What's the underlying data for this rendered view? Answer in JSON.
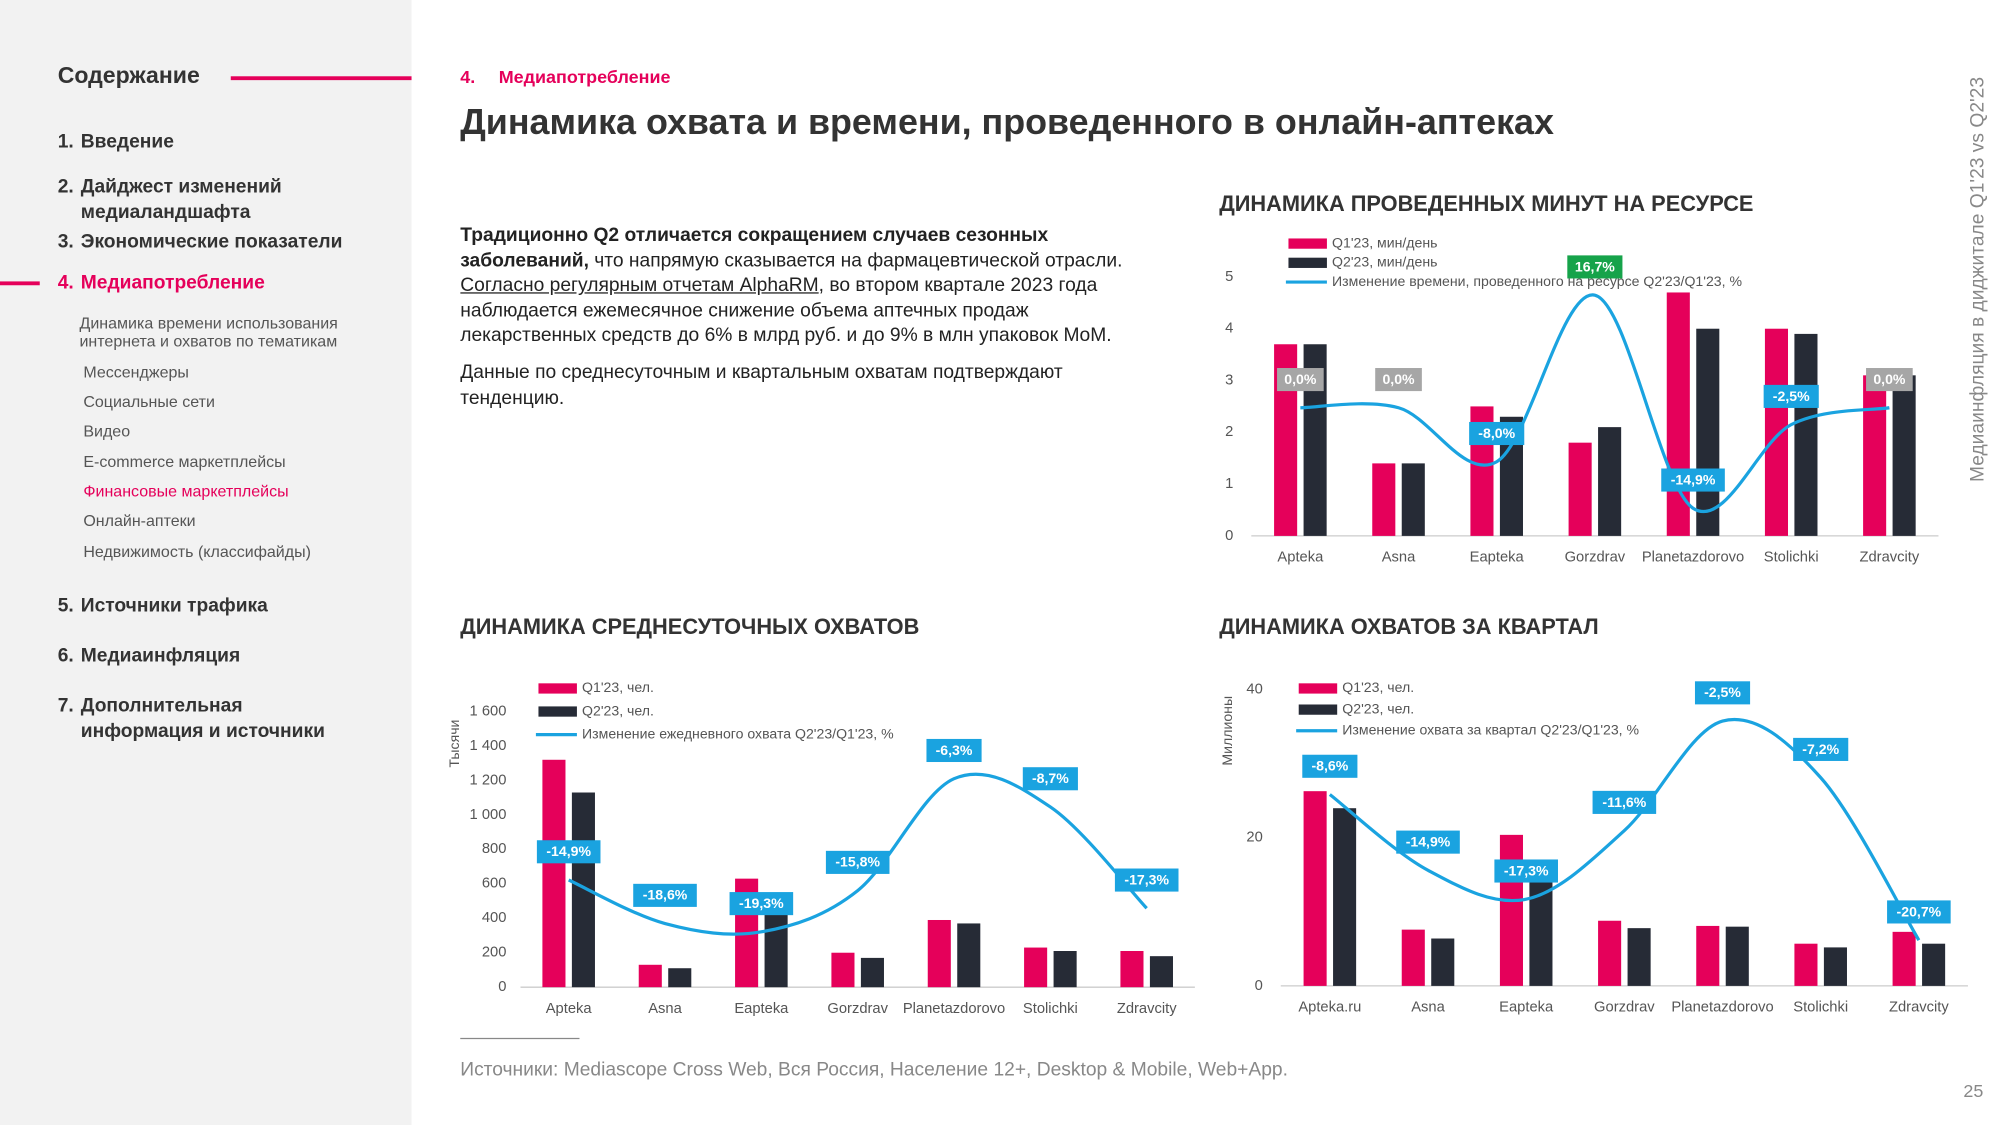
{
  "sidebar": {
    "title": "Содержание",
    "active_item": 3,
    "active_subitem": 5,
    "active_color": "#e5005a",
    "items": [
      {
        "number": "1.",
        "lines": [
          "Введение"
        ]
      },
      {
        "number": "2.",
        "lines": [
          "Дайджест изменений",
          "медиаландшафта"
        ]
      },
      {
        "number": "3.",
        "lines": [
          "Экономические показатели"
        ]
      },
      {
        "number": "4.",
        "lines": [
          "Медиапотребление"
        ]
      },
      {
        "number": "5.",
        "lines": [
          "Источники трафика"
        ]
      },
      {
        "number": "6.",
        "lines": [
          "Медиаинфляция"
        ]
      },
      {
        "number": "7.",
        "lines": [
          "Дополнительная",
          "информация и источники"
        ]
      }
    ],
    "subitems": [
      [
        "Динамика времени использования",
        "интернета и охватов по тематикам"
      ],
      [
        "Мессенджеры"
      ],
      [
        "Социальные сети"
      ],
      [
        "Видео"
      ],
      [
        "E-commerce маркетплейсы"
      ],
      [
        "Финансовые маркетплейсы"
      ],
      [
        "Онлайн-аптеки"
      ],
      [
        "Недвижимость (классифайды)"
      ]
    ]
  },
  "header": {
    "section_number": "4.",
    "section": "Медиапотребление",
    "title": "Динамика охвата и времени, проведенного в онлайн-аптеках"
  },
  "text": {
    "p1_bold": "Традиционно Q2 отличается сокращением случаев сезонных заболеваний,",
    "p1_a": " что напрямую сказывается на фармацевтической отрасли. ",
    "p1_link": "Согласно регулярным отчетам AlphaRM",
    "p1_b": ", во втором квартале 2023 года наблюдается ежемесячное снижение объема аптечных продаж лекарственных средств до 6% в млрд руб. и до 9% в млн упаковок MoM.",
    "p2": "Данные по среднесуточным и квартальным охватам подтверждают тенденцию."
  },
  "side_label": "Медиаинфляция в диджитале Q1'23 vs Q2'23",
  "source": "Источники: Mediascope Cross Web, Вся Россия, Население 12+, Desktop & Mobile, Web+App.",
  "page_number": "25",
  "chart_data": [
    {
      "type": "bar",
      "title": "ДИНАМИКА ПРОВЕДЕННЫХ МИНУТ НА РЕСУРСЕ",
      "categories": [
        "Apteka",
        "Asna",
        "Eapteka",
        "Gorzdrav",
        "Planetazdorovo",
        "Stolichki",
        "Zdravcity"
      ],
      "series": [
        {
          "name": "Q1'23, мин/день",
          "color": "#e5005a",
          "values": [
            3.7,
            1.4,
            2.5,
            1.8,
            4.7,
            4.0,
            3.1
          ]
        },
        {
          "name": "Q2'23, мин/день",
          "color": "#262b36",
          "values": [
            3.7,
            1.4,
            2.3,
            2.1,
            4.0,
            3.9,
            3.1
          ]
        },
        {
          "name": "Изменение времени, проведенного на ресурсе Q2'23/Q1'23, %",
          "color": "#1aa3e0",
          "type": "line",
          "axis": "y2",
          "values": [
            0,
            0,
            -8.0,
            16.7,
            -14.9,
            -2.5,
            0
          ],
          "value_labels": [
            "0,0%",
            "0,0%",
            "-8,0%",
            "16,7%",
            "-14,9%",
            "-2,5%",
            "0,0%"
          ]
        }
      ],
      "ylim": [
        0,
        5
      ],
      "yticks": [
        0,
        1,
        2,
        3,
        4,
        5
      ],
      "y2lim": [
        -19,
        19.4
      ],
      "label_colors": {
        "negative": "#1aa3e0",
        "positive": "#16a34a",
        "zero": "#a6a6a6"
      }
    },
    {
      "type": "bar",
      "title": "ДИНАМИКА СРЕДНЕСУТОЧНЫХ ОХВАТОВ",
      "y_label": "Тысячи",
      "categories": [
        "Apteka",
        "Asna",
        "Eapteka",
        "Gorzdrav",
        "Planetazdorovo",
        "Stolichki",
        "Zdravcity"
      ],
      "series": [
        {
          "name": "Q1'23, чел.",
          "color": "#e5005a",
          "values": [
            1320,
            130,
            630,
            200,
            390,
            230,
            210
          ]
        },
        {
          "name": "Q2'23, чел.",
          "color": "#262b36",
          "values": [
            1130,
            110,
            450,
            170,
            370,
            210,
            180
          ]
        },
        {
          "name": "Изменение ежедневного охвата Q2'23/Q1'23, %",
          "color": "#1aa3e0",
          "type": "line",
          "axis": "y2",
          "values": [
            -14.9,
            -18.6,
            -19.3,
            -15.8,
            -6.3,
            -8.7,
            -17.3
          ],
          "value_labels": [
            "-14,9%",
            "-18,6%",
            "-19,3%",
            "-15,8%",
            "-6,3%",
            "-8,7%",
            "-17,3%"
          ]
        }
      ],
      "ylim": [
        0,
        1600
      ],
      "yticks": [
        0,
        200,
        400,
        600,
        800,
        {
          "value": 1000,
          "label": "1 000"
        },
        {
          "value": 1200,
          "label": "1 200"
        },
        {
          "value": 1400,
          "label": "1 400"
        },
        {
          "value": 1600,
          "label": "1 600"
        }
      ],
      "y2lim": [
        -24,
        -0.6
      ],
      "label_colors": {
        "negative": "#1aa3e0"
      }
    },
    {
      "type": "bar",
      "title": "ДИНАМИКА ОХВАТОВ ЗА КВАРТАЛ",
      "y_label": "Миллионы",
      "categories": [
        "Apteka.ru",
        "Asna",
        "Eapteka",
        "Gorzdrav",
        "Planetazdorovo",
        "Stolichki",
        "Zdravcity"
      ],
      "series": [
        {
          "name": "Q1'23, чел.",
          "color": "#e5005a",
          "values": [
            26.3,
            7.6,
            20.4,
            8.8,
            8.1,
            5.7,
            7.3
          ]
        },
        {
          "name": "Q2'23, чел.",
          "color": "#262b36",
          "values": [
            24.0,
            6.4,
            17.0,
            7.8,
            8.0,
            5.2,
            5.7
          ]
        },
        {
          "name": "Изменение охвата за квартал Q2'23/Q1'23, %",
          "color": "#1aa3e0",
          "type": "line",
          "axis": "y2",
          "values": [
            -8.6,
            -14.9,
            -17.3,
            -11.6,
            -2.5,
            -7.2,
            -20.7
          ],
          "value_labels": [
            "-8,6%",
            "-14,9%",
            "-17,3%",
            "-11,6%",
            "-2,5%",
            "-7,2%",
            "-20,7%"
          ]
        }
      ],
      "ylim": [
        0,
        40
      ],
      "yticks": [
        0,
        20,
        40
      ],
      "y2lim": [
        -24.5,
        0.1
      ],
      "label_colors": {
        "negative": "#1aa3e0"
      }
    }
  ]
}
